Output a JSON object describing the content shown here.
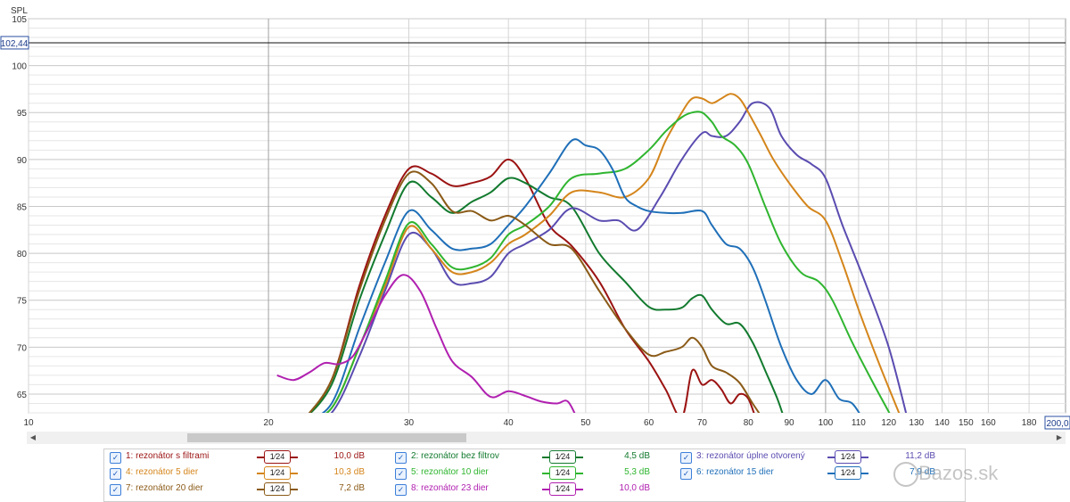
{
  "chart_data": {
    "type": "line",
    "ylabel": "SPL",
    "x_scale": "log",
    "xlim": [
      10,
      200
    ],
    "ylim": [
      63,
      105
    ],
    "x_ticks": [
      10,
      20,
      30,
      40,
      50,
      60,
      70,
      80,
      90,
      100,
      110,
      120,
      130,
      140,
      150,
      160,
      180
    ],
    "x_tick_labels": [
      "10",
      "20",
      "30",
      "40",
      "50",
      "60",
      "70",
      "80",
      "90",
      "100",
      "110",
      "120",
      "130",
      "140",
      "150",
      "160",
      "180"
    ],
    "y_ticks": [
      65,
      70,
      75,
      80,
      85,
      90,
      95,
      100,
      105
    ],
    "y_tick_labels": [
      "65",
      "70",
      "75",
      "80",
      "85",
      "90",
      "95",
      "100",
      "105"
    ],
    "x_end_label": "200,0",
    "cursor": {
      "label": "102,44",
      "value": 102.44
    },
    "grid": true,
    "series": [
      {
        "name": "1: rezonátor s filtrami",
        "color": "#9b1212",
        "x": [
          22,
          24,
          26,
          28,
          30,
          32,
          34,
          36,
          38,
          40,
          42,
          45,
          48,
          52,
          56,
          60,
          63,
          66,
          68,
          70,
          72,
          74,
          76,
          78,
          80,
          82
        ],
        "y": [
          62,
          66.5,
          76.5,
          84,
          89,
          88.5,
          87.2,
          87.5,
          88.2,
          90,
          88,
          83,
          80.8,
          77,
          72,
          68.5,
          65.5,
          62.5,
          67.5,
          66,
          66.5,
          65.5,
          64,
          65,
          64.5,
          62
        ]
      },
      {
        "name": "2: rezonátor bez filtrov",
        "color": "#127a2e",
        "x": [
          22,
          24,
          26,
          28,
          30,
          32,
          34,
          36,
          38,
          40,
          42,
          45,
          48,
          52,
          56,
          60,
          63,
          66,
          68,
          70,
          72,
          75,
          78,
          81,
          84,
          87,
          89
        ],
        "y": [
          62,
          66,
          75,
          82,
          87.5,
          86,
          84.3,
          85.5,
          86.5,
          88,
          87.5,
          86,
          85,
          80,
          77,
          74.3,
          74,
          74.2,
          75.2,
          75.5,
          74,
          72.5,
          72.5,
          70.5,
          67.5,
          64.5,
          62
        ]
      },
      {
        "name": "3: rezonátor úplne otvorený",
        "color": "#5a4cb0",
        "x": [
          22,
          24,
          26,
          28,
          30,
          32,
          34,
          36,
          38,
          40,
          42,
          45,
          48,
          52,
          55,
          58,
          62,
          66,
          70,
          72,
          75,
          78,
          81,
          85,
          88,
          92,
          96,
          100,
          105,
          112,
          120,
          127
        ],
        "y": [
          62,
          63,
          69,
          76,
          82,
          80.5,
          77,
          76.8,
          77.5,
          80,
          81,
          82.5,
          84.8,
          83.5,
          83.5,
          82.5,
          86,
          90,
          92.8,
          92.5,
          92.5,
          94,
          96,
          95.5,
          92.5,
          90.5,
          89.5,
          88,
          83,
          77,
          70,
          62
        ]
      },
      {
        "name": "4: rezonátor 5 dier",
        "color": "#d4851b",
        "x": [
          22,
          24,
          26,
          28,
          30,
          32,
          34,
          36,
          38,
          40,
          42,
          45,
          48,
          52,
          56,
          60,
          63,
          66,
          68,
          70,
          72,
          74,
          76,
          78,
          80,
          83,
          86,
          90,
          95,
          100,
          105,
          110,
          117,
          125
        ],
        "y": [
          62,
          63.5,
          70,
          76.5,
          82.8,
          80.5,
          78,
          78,
          79,
          81,
          82,
          84,
          86.5,
          86.5,
          86,
          88,
          92,
          95,
          96.5,
          96.5,
          96,
          96.5,
          97,
          96.5,
          95,
          92.5,
          90,
          87.5,
          85,
          83.5,
          79,
          74,
          68,
          62
        ]
      },
      {
        "name": "5: rezonátor 10 dier",
        "color": "#2fb52f",
        "x": [
          22,
          24,
          26,
          28,
          30,
          32,
          34,
          36,
          38,
          40,
          42,
          45,
          48,
          52,
          56,
          60,
          63,
          66,
          68,
          70,
          72,
          74,
          77,
          80,
          84,
          88,
          93,
          98,
          102,
          108,
          115,
          122
        ],
        "y": [
          62,
          63.5,
          70,
          77,
          83.2,
          81,
          78.5,
          78.5,
          79.5,
          82,
          83,
          85,
          88,
          88.5,
          89,
          91,
          93,
          94.5,
          95,
          95,
          94,
          92.5,
          91.5,
          89.5,
          85,
          81,
          78,
          77,
          75,
          70.5,
          66,
          62
        ]
      },
      {
        "name": "6: rezonátor 15 dier",
        "color": "#1f6fb8",
        "x": [
          22,
          24,
          26,
          28,
          30,
          32,
          34,
          36,
          38,
          40,
          42,
          45,
          48,
          50,
          52,
          54,
          56,
          58,
          60,
          63,
          66,
          70,
          72,
          75,
          78,
          81,
          84,
          88,
          92,
          96,
          100,
          104,
          108,
          112
        ],
        "y": [
          62,
          64,
          72,
          79,
          84.5,
          82.5,
          80.5,
          80.5,
          81,
          83,
          85,
          88.5,
          92,
          91.5,
          91,
          89,
          86,
          85,
          84.5,
          84.3,
          84.3,
          84.5,
          83,
          81,
          80.5,
          78.5,
          75,
          70,
          66.5,
          65,
          66.5,
          64.5,
          64,
          62
        ]
      },
      {
        "name": "7: rezonátor 20 dier",
        "color": "#8a5a17",
        "x": [
          22,
          24,
          26,
          28,
          30,
          32,
          34,
          36,
          38,
          40,
          42,
          45,
          48,
          52,
          56,
          60,
          63,
          66,
          68,
          70,
          72,
          75,
          78,
          81,
          84
        ],
        "y": [
          62,
          66.5,
          76,
          83.5,
          88.5,
          87.5,
          84.5,
          84.5,
          83.5,
          84,
          83,
          81,
          80.5,
          76,
          72,
          69.2,
          69.5,
          70,
          71,
          70,
          68,
          67.3,
          66.2,
          64,
          62
        ]
      },
      {
        "name": "8: rezonátor 23 dier",
        "color": "#b020b0",
        "x": [
          20.5,
          21.5,
          22.5,
          23.5,
          24.5,
          25.5,
          26.5,
          28,
          29.5,
          31,
          32.5,
          34,
          36,
          38,
          40,
          42,
          44,
          46,
          47.5,
          49
        ],
        "y": [
          67,
          66.5,
          67.3,
          68.3,
          68.2,
          69,
          71.5,
          75.5,
          77.7,
          76,
          72,
          68.5,
          66.8,
          64.7,
          65.3,
          64.8,
          64.2,
          64,
          64.2,
          62
        ]
      }
    ]
  },
  "legend": [
    {
      "label": "1: rezonátor s filtrami",
      "smoothing": "1⁄24",
      "db": "10,0 dB",
      "color": "#9b1212"
    },
    {
      "label": "2: rezonátor bez filtrov",
      "smoothing": "1⁄24",
      "db": "4,5 dB",
      "color": "#127a2e"
    },
    {
      "label": "3: rezonátor úplne otvorený",
      "smoothing": "1⁄24",
      "db": "11,2 dB",
      "color": "#5a4cb0"
    },
    {
      "label": "4: rezonátor 5 dier",
      "smoothing": "1⁄24",
      "db": "10,3 dB",
      "color": "#d4851b"
    },
    {
      "label": "5: rezonátor 10 dier",
      "smoothing": "1⁄24",
      "db": "5,3 dB",
      "color": "#2fb52f"
    },
    {
      "label": "6: rezonátor 15 dier",
      "smoothing": "1⁄24",
      "db": "7,9 dB",
      "color": "#1f6fb8"
    },
    {
      "label": "7: rezonátor 20 dier",
      "smoothing": "1⁄24",
      "db": "7,2 dB",
      "color": "#8a5a17"
    },
    {
      "label": "8: rezonátor 23 dier",
      "smoothing": "1⁄24",
      "db": "10,0 dB",
      "color": "#b020b0"
    }
  ],
  "watermark": "Bazos.sk"
}
